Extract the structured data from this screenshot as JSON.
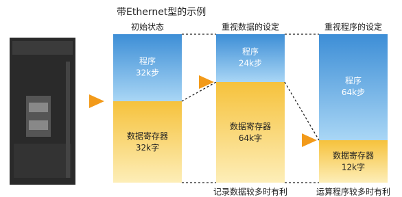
{
  "title": "带Ethernet型的示例",
  "columns": [
    {
      "header": "初始状态",
      "program": {
        "label": "程序",
        "size": "32k步"
      },
      "data": {
        "label": "数据寄存器",
        "size": "32k字"
      }
    },
    {
      "header": "重视数据的设定",
      "program": {
        "label": "程序",
        "size": "24k步"
      },
      "data": {
        "label": "数据寄存器",
        "size": "64k字"
      },
      "footer": "记录数据较多时有利"
    },
    {
      "header": "重视程序的设定",
      "program": {
        "label": "程序",
        "size": "64k步"
      },
      "data": {
        "label": "数据寄存器",
        "size": "12k字"
      },
      "footer": "运算程序较多时有利"
    }
  ]
}
